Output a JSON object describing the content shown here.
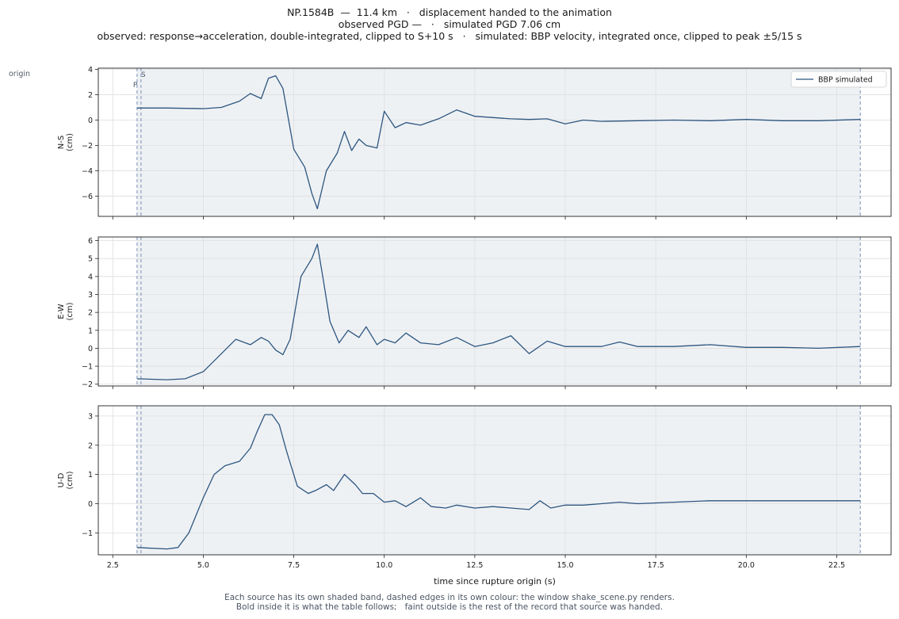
{
  "header": {
    "line1": "NP.1584B  —  11.4 km   ·   displacement handed to the animation",
    "line2": "observed PGD —   ·   simulated PGD 7.06 cm",
    "line3": "observed: response→acceleration, double-integrated, clipped to S+10 s   ·   simulated: BBP velocity, integrated once, clipped to peak ±5/15 s"
  },
  "corner_label": "origin",
  "footer": {
    "line1": "Each source has its own shaded band, dashed edges in its own colour: the window shake_scene.py renders.",
    "line2": "Bold inside it is what the table follows;   faint outside is the rest of the record that source was handed."
  },
  "colors": {
    "series": "#2d5680",
    "band": "#eef1f4",
    "dashed": "#7a8fb5",
    "grid": "#dedede"
  },
  "chart_data": [
    {
      "type": "line",
      "panel": "N-S",
      "ylabel": "N-S\n(cm)",
      "xlim": [
        2.1,
        24.0
      ],
      "ylim": [
        -7.6,
        4.1
      ],
      "yticks": [
        4,
        2,
        0,
        -2,
        -4,
        -6
      ],
      "xticks": [
        2.5,
        5.0,
        7.5,
        10.0,
        12.5,
        15.0,
        17.5,
        20.0,
        22.5
      ],
      "legend": "top-right",
      "legend_label": "BBP simulated",
      "markers": [
        {
          "label": "P",
          "x": 3.17
        },
        {
          "label": "S",
          "x": 3.28
        }
      ],
      "band": [
        3.17,
        23.15
      ],
      "series": [
        {
          "name": "BBP simulated",
          "x": [
            3.17,
            4.0,
            5.0,
            5.5,
            6.0,
            6.3,
            6.6,
            6.8,
            7.0,
            7.2,
            7.5,
            7.8,
            8.0,
            8.15,
            8.4,
            8.7,
            8.9,
            9.1,
            9.3,
            9.5,
            9.8,
            10.0,
            10.3,
            10.6,
            11.0,
            11.5,
            12.0,
            12.5,
            13.0,
            13.5,
            14.0,
            14.5,
            15.0,
            15.5,
            16.0,
            17.0,
            18.0,
            19.0,
            20.0,
            21.0,
            22.0,
            23.15
          ],
          "values": [
            0.95,
            0.95,
            0.9,
            1.0,
            1.5,
            2.1,
            1.7,
            3.3,
            3.5,
            2.5,
            -2.3,
            -3.7,
            -5.8,
            -7.0,
            -4.0,
            -2.6,
            -0.9,
            -2.4,
            -1.5,
            -2.0,
            -2.2,
            0.7,
            -0.6,
            -0.2,
            -0.4,
            0.1,
            0.8,
            0.3,
            0.2,
            0.1,
            0.05,
            0.1,
            -0.3,
            0.0,
            -0.1,
            -0.05,
            0.0,
            -0.05,
            0.05,
            -0.05,
            -0.05,
            0.05
          ]
        }
      ]
    },
    {
      "type": "line",
      "panel": "E-W",
      "ylabel": "E-W\n(cm)",
      "xlim": [
        2.1,
        24.0
      ],
      "ylim": [
        -2.1,
        6.2
      ],
      "yticks": [
        6,
        5,
        4,
        3,
        2,
        1,
        0,
        -1,
        -2
      ],
      "xticks": [
        2.5,
        5.0,
        7.5,
        10.0,
        12.5,
        15.0,
        17.5,
        20.0,
        22.5
      ],
      "band": [
        3.17,
        23.15
      ],
      "series": [
        {
          "name": "BBP simulated",
          "x": [
            3.17,
            4.0,
            4.5,
            5.0,
            5.5,
            5.9,
            6.3,
            6.6,
            6.8,
            7.0,
            7.2,
            7.4,
            7.7,
            8.0,
            8.15,
            8.3,
            8.5,
            8.75,
            9.0,
            9.3,
            9.5,
            9.8,
            10.0,
            10.3,
            10.6,
            11.0,
            11.5,
            12.0,
            12.5,
            13.0,
            13.5,
            14.0,
            14.5,
            15.0,
            16.0,
            16.5,
            17.0,
            18.0,
            19.0,
            20.0,
            21.0,
            22.0,
            23.15
          ],
          "values": [
            -1.7,
            -1.75,
            -1.7,
            -1.3,
            -0.3,
            0.5,
            0.2,
            0.6,
            0.4,
            -0.1,
            -0.35,
            0.5,
            4.0,
            5.0,
            5.8,
            4.0,
            1.5,
            0.3,
            1.0,
            0.6,
            1.2,
            0.2,
            0.5,
            0.3,
            0.85,
            0.3,
            0.2,
            0.6,
            0.1,
            0.3,
            0.7,
            -0.3,
            0.4,
            0.1,
            0.1,
            0.35,
            0.1,
            0.1,
            0.2,
            0.05,
            0.05,
            0.0,
            0.1
          ]
        }
      ]
    },
    {
      "type": "line",
      "panel": "U-D",
      "ylabel": "U-D\n(cm)",
      "xlabel": "time since rupture origin (s)",
      "xlim": [
        2.1,
        24.0
      ],
      "ylim": [
        -1.75,
        3.35
      ],
      "yticks": [
        3,
        2,
        1,
        0,
        -1
      ],
      "xticks": [
        2.5,
        5.0,
        7.5,
        10.0,
        12.5,
        15.0,
        17.5,
        20.0,
        22.5
      ],
      "xticklabels": [
        "2.5",
        "5.0",
        "7.5",
        "10.0",
        "12.5",
        "15.0",
        "17.5",
        "20.0",
        "22.5"
      ],
      "band": [
        3.17,
        23.15
      ],
      "series": [
        {
          "name": "BBP simulated",
          "x": [
            3.17,
            4.0,
            4.3,
            4.6,
            5.0,
            5.3,
            5.6,
            6.0,
            6.3,
            6.5,
            6.7,
            6.9,
            7.1,
            7.3,
            7.6,
            7.9,
            8.1,
            8.4,
            8.6,
            8.9,
            9.2,
            9.4,
            9.7,
            10.0,
            10.3,
            10.6,
            11.0,
            11.3,
            11.7,
            12.0,
            12.5,
            13.0,
            13.5,
            14.0,
            14.3,
            14.6,
            15.0,
            15.5,
            16.0,
            16.5,
            17.0,
            18.0,
            19.0,
            20.0,
            21.0,
            22.0,
            23.15
          ],
          "values": [
            -1.5,
            -1.55,
            -1.5,
            -1.0,
            0.2,
            1.0,
            1.3,
            1.45,
            1.9,
            2.5,
            3.05,
            3.05,
            2.7,
            1.8,
            0.6,
            0.35,
            0.45,
            0.65,
            0.45,
            1.0,
            0.65,
            0.35,
            0.35,
            0.05,
            0.1,
            -0.1,
            0.2,
            -0.1,
            -0.15,
            -0.05,
            -0.15,
            -0.1,
            -0.15,
            -0.2,
            0.1,
            -0.15,
            -0.05,
            -0.05,
            0.0,
            0.05,
            0.0,
            0.05,
            0.1,
            0.1,
            0.1,
            0.1,
            0.1
          ]
        }
      ]
    }
  ]
}
